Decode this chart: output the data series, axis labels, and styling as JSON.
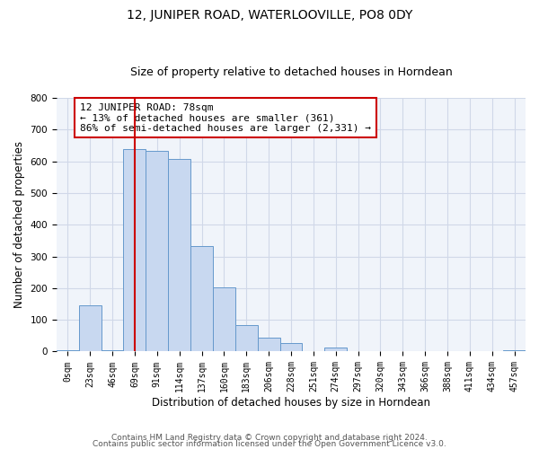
{
  "title": "12, JUNIPER ROAD, WATERLOOVILLE, PO8 0DY",
  "subtitle": "Size of property relative to detached houses in Horndean",
  "xlabel": "Distribution of detached houses by size in Horndean",
  "ylabel": "Number of detached properties",
  "bin_labels": [
    "0sqm",
    "23sqm",
    "46sqm",
    "69sqm",
    "91sqm",
    "114sqm",
    "137sqm",
    "160sqm",
    "183sqm",
    "206sqm",
    "228sqm",
    "251sqm",
    "274sqm",
    "297sqm",
    "320sqm",
    "343sqm",
    "366sqm",
    "388sqm",
    "411sqm",
    "434sqm",
    "457sqm"
  ],
  "bar_heights": [
    3,
    145,
    5,
    638,
    633,
    608,
    333,
    202,
    83,
    43,
    27,
    2,
    13,
    2,
    0,
    0,
    0,
    0,
    0,
    0,
    3
  ],
  "bar_color": "#c8d8f0",
  "bar_edge_color": "#6699cc",
  "vline_x": 3.0,
  "vline_color": "#cc0000",
  "annotation_line1": "12 JUNIPER ROAD: 78sqm",
  "annotation_line2": "← 13% of detached houses are smaller (361)",
  "annotation_line3": "86% of semi-detached houses are larger (2,331) →",
  "annotation_box_color": "#ffffff",
  "annotation_box_edge": "#cc0000",
  "ylim": [
    0,
    800
  ],
  "yticks": [
    0,
    100,
    200,
    300,
    400,
    500,
    600,
    700,
    800
  ],
  "footnote1": "Contains HM Land Registry data © Crown copyright and database right 2024.",
  "footnote2": "Contains public sector information licensed under the Open Government Licence v3.0.",
  "title_fontsize": 10,
  "subtitle_fontsize": 9,
  "axis_label_fontsize": 8.5,
  "tick_fontsize": 7,
  "annotation_fontsize": 8,
  "footnote_fontsize": 6.5,
  "grid_color": "#d0d8e8"
}
